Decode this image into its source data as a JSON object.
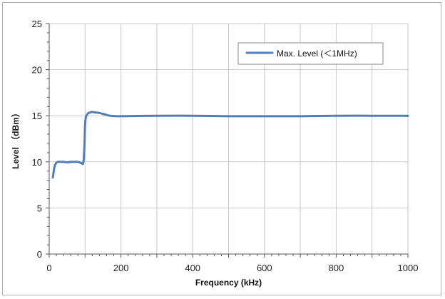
{
  "chart_data": {
    "type": "line",
    "title": "",
    "xlabel": "Frequency (kHz)",
    "ylabel": "Level （dBm）",
    "xlim": [
      0,
      1000
    ],
    "ylim": [
      0,
      25
    ],
    "x_ticks": [
      0,
      200,
      400,
      600,
      800,
      1000
    ],
    "y_ticks": [
      0,
      5,
      10,
      15,
      20,
      25
    ],
    "grid": true,
    "legend_position": "top-right",
    "series": [
      {
        "name": "Max. Level (＜1MHz)",
        "color": "#4f7ebd",
        "x": [
          10,
          15,
          20,
          25,
          30,
          40,
          50,
          60,
          70,
          80,
          90,
          95,
          98,
          100,
          102,
          105,
          110,
          120,
          130,
          140,
          150,
          160,
          170,
          200,
          300,
          400,
          500,
          600,
          700,
          800,
          900,
          1000
        ],
        "y": [
          8.3,
          9.5,
          9.9,
          10.0,
          10.0,
          10.0,
          9.95,
          10.0,
          10.0,
          10.0,
          9.85,
          9.9,
          11.5,
          14.0,
          14.8,
          15.1,
          15.3,
          15.4,
          15.35,
          15.3,
          15.2,
          15.1,
          15.0,
          14.95,
          15.0,
          15.0,
          14.95,
          14.95,
          14.95,
          15.0,
          15.0,
          15.0
        ]
      }
    ]
  }
}
